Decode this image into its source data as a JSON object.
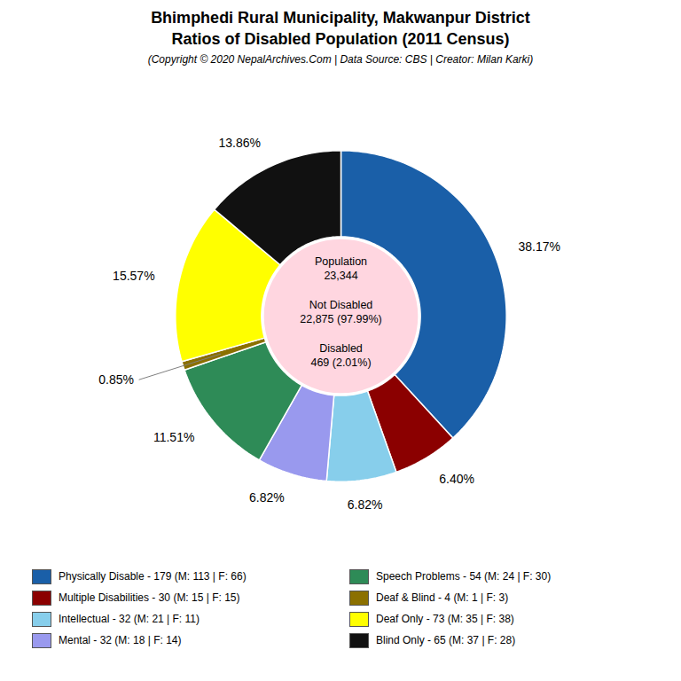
{
  "chart_data": {
    "type": "pie",
    "title": [
      "Bhimphedi Rural Municipality, Makwanpur District",
      "Ratios of Disabled Population (2011 Census)"
    ],
    "subtitle": "(Copyright © 2020 NepalArchives.Com | Data Source: CBS | Creator: Milan Karki)",
    "categories": [
      "Physically Disable - 179 (M: 113 | F: 66)",
      "Multiple Disabilities - 30 (M: 15 | F: 15)",
      "Intellectual - 32 (M: 21 | F: 11)",
      "Mental - 32 (M: 18 | F: 14)",
      "Speech Problems - 54 (M: 24 | F: 30)",
      "Deaf & Blind - 4 (M: 1 | F: 3)",
      "Deaf Only - 73 (M: 35 | F: 38)",
      "Blind Only - 65 (M: 37 | F: 28)"
    ],
    "values": [
      38.17,
      6.4,
      6.82,
      6.82,
      11.51,
      0.85,
      15.57,
      13.86
    ],
    "value_labels": [
      "38.17%",
      "6.40%",
      "6.82%",
      "6.82%",
      "11.51%",
      "0.85%",
      "15.57%",
      "13.86%"
    ],
    "colors": [
      "#1a5fa8",
      "#8b0000",
      "#87ceeb",
      "#9999ee",
      "#2e8b57",
      "#8b7000",
      "#ffff00",
      "#111111"
    ],
    "data_labels": true,
    "legend": "bottom",
    "annotations": [
      "Population\n23,344",
      "Not Disabled\n22,875 (97.99%)",
      "Disabled\n469 (2.01%)"
    ]
  }
}
